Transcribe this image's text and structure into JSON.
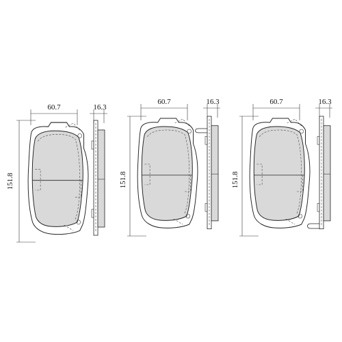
{
  "drawings": [
    {
      "width": "60.7",
      "thickness": "16.3",
      "height": "151.8"
    },
    {
      "width": "60.7",
      "thickness": "16.3",
      "height": "151.8"
    },
    {
      "width": "60.7",
      "thickness": "16.3",
      "height": "151.8"
    }
  ]
}
